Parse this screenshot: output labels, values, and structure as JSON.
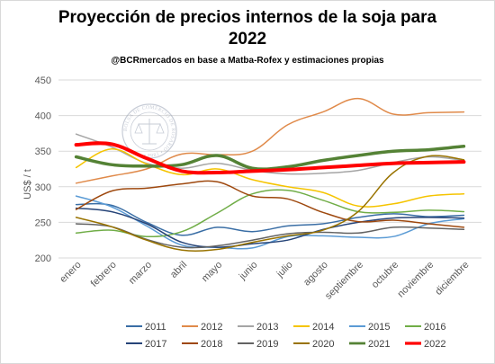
{
  "chart_data": {
    "type": "line",
    "title_line1": "Proyección de precios internos de la soja para",
    "title_line2": "2022",
    "subtitle": "@BCRmercados  en base a Matba-Rofex y estimaciones propias",
    "ylabel": "US$ / t",
    "xlabel": "",
    "ylim": [
      200,
      450
    ],
    "yticks": [
      "200",
      "250",
      "300",
      "350",
      "400",
      "450"
    ],
    "ytick_values": [
      200,
      250,
      300,
      350,
      400,
      450
    ],
    "grid": true,
    "legend_position": "bottom",
    "categories": [
      "enero",
      "febrero",
      "marzo",
      "abril",
      "mayo",
      "junio",
      "julio",
      "agosto",
      "septiembre",
      "octubre",
      "noviembre",
      "diciembre"
    ],
    "series": [
      {
        "name": "2011",
        "color": "#3a6ea5",
        "width": 1.5,
        "values": [
          275,
          274,
          250,
          232,
          243,
          237,
          245,
          248,
          257,
          262,
          258,
          260
        ]
      },
      {
        "name": "2012",
        "color": "#e08a4a",
        "width": 1.5,
        "values": [
          305,
          315,
          325,
          346,
          345,
          350,
          387,
          405,
          424,
          402,
          404,
          405
        ]
      },
      {
        "name": "2013",
        "color": "#a5a5a5",
        "width": 1.5,
        "values": [
          374,
          356,
          333,
          326,
          333,
          323,
          318,
          319,
          323,
          334,
          342,
          337
        ]
      },
      {
        "name": "2014",
        "color": "#f5c400",
        "width": 1.5,
        "values": [
          327,
          353,
          332,
          317,
          325,
          310,
          300,
          292,
          273,
          276,
          287,
          290
        ]
      },
      {
        "name": "2015",
        "color": "#5b9bd5",
        "width": 1.5,
        "values": [
          287,
          272,
          245,
          218,
          215,
          214,
          230,
          231,
          229,
          230,
          248,
          255
        ]
      },
      {
        "name": "2016",
        "color": "#70ad47",
        "width": 1.5,
        "values": [
          235,
          239,
          230,
          237,
          263,
          290,
          295,
          281,
          265,
          264,
          267,
          265
        ]
      },
      {
        "name": "2017",
        "color": "#264478",
        "width": 1.5,
        "values": [
          270,
          265,
          248,
          222,
          215,
          220,
          225,
          240,
          250,
          256,
          257,
          256
        ]
      },
      {
        "name": "2018",
        "color": "#9e480e",
        "width": 1.5,
        "values": [
          268,
          294,
          298,
          304,
          307,
          287,
          283,
          264,
          251,
          253,
          248,
          243
        ]
      },
      {
        "name": "2019",
        "color": "#636363",
        "width": 1.5,
        "values": [
          248,
          244,
          226,
          215,
          217,
          225,
          234,
          236,
          235,
          243,
          242,
          240
        ]
      },
      {
        "name": "2020",
        "color": "#997300",
        "width": 1.5,
        "values": [
          257,
          244,
          225,
          211,
          212,
          222,
          231,
          239,
          265,
          320,
          343,
          338
        ]
      },
      {
        "name": "2021",
        "color": "#548235",
        "width": 3.5,
        "values": [
          342,
          331,
          329,
          331,
          344,
          326,
          328,
          337,
          344,
          350,
          352,
          357
        ]
      },
      {
        "name": "2022",
        "color": "#ff0000",
        "width": 4,
        "values": [
          359,
          360,
          340,
          322,
          320,
          322,
          324,
          327,
          330,
          333,
          334,
          335
        ]
      }
    ]
  }
}
